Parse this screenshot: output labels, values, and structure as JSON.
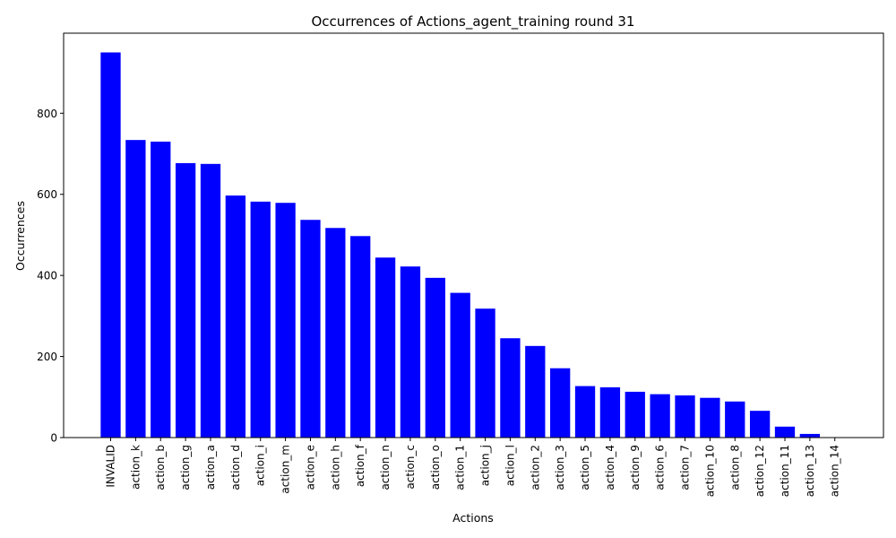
{
  "chart_data": {
    "type": "bar",
    "title": "Occurrences of Actions_agent_training round 31",
    "xlabel": "Actions",
    "ylabel": "Occurrences",
    "ylim": [
      0,
      997.5
    ],
    "yticks": [
      0,
      200,
      400,
      600,
      800
    ],
    "grid": false,
    "bar_color": "#0000ff",
    "categories": [
      "INVALID",
      "action_k",
      "action_b",
      "action_g",
      "action_a",
      "action_d",
      "action_i",
      "action_m",
      "action_e",
      "action_h",
      "action_f",
      "action_n",
      "action_c",
      "action_o",
      "action_1",
      "action_j",
      "action_l",
      "action_2",
      "action_3",
      "action_5",
      "action_4",
      "action_9",
      "action_6",
      "action_7",
      "action_10",
      "action_8",
      "action_12",
      "action_11",
      "action_13",
      "action_14"
    ],
    "values": [
      950,
      734,
      730,
      677,
      675,
      597,
      582,
      579,
      537,
      517,
      497,
      444,
      422,
      394,
      357,
      318,
      245,
      226,
      171,
      127,
      124,
      113,
      107,
      104,
      98,
      89,
      66,
      27,
      9,
      0
    ]
  }
}
